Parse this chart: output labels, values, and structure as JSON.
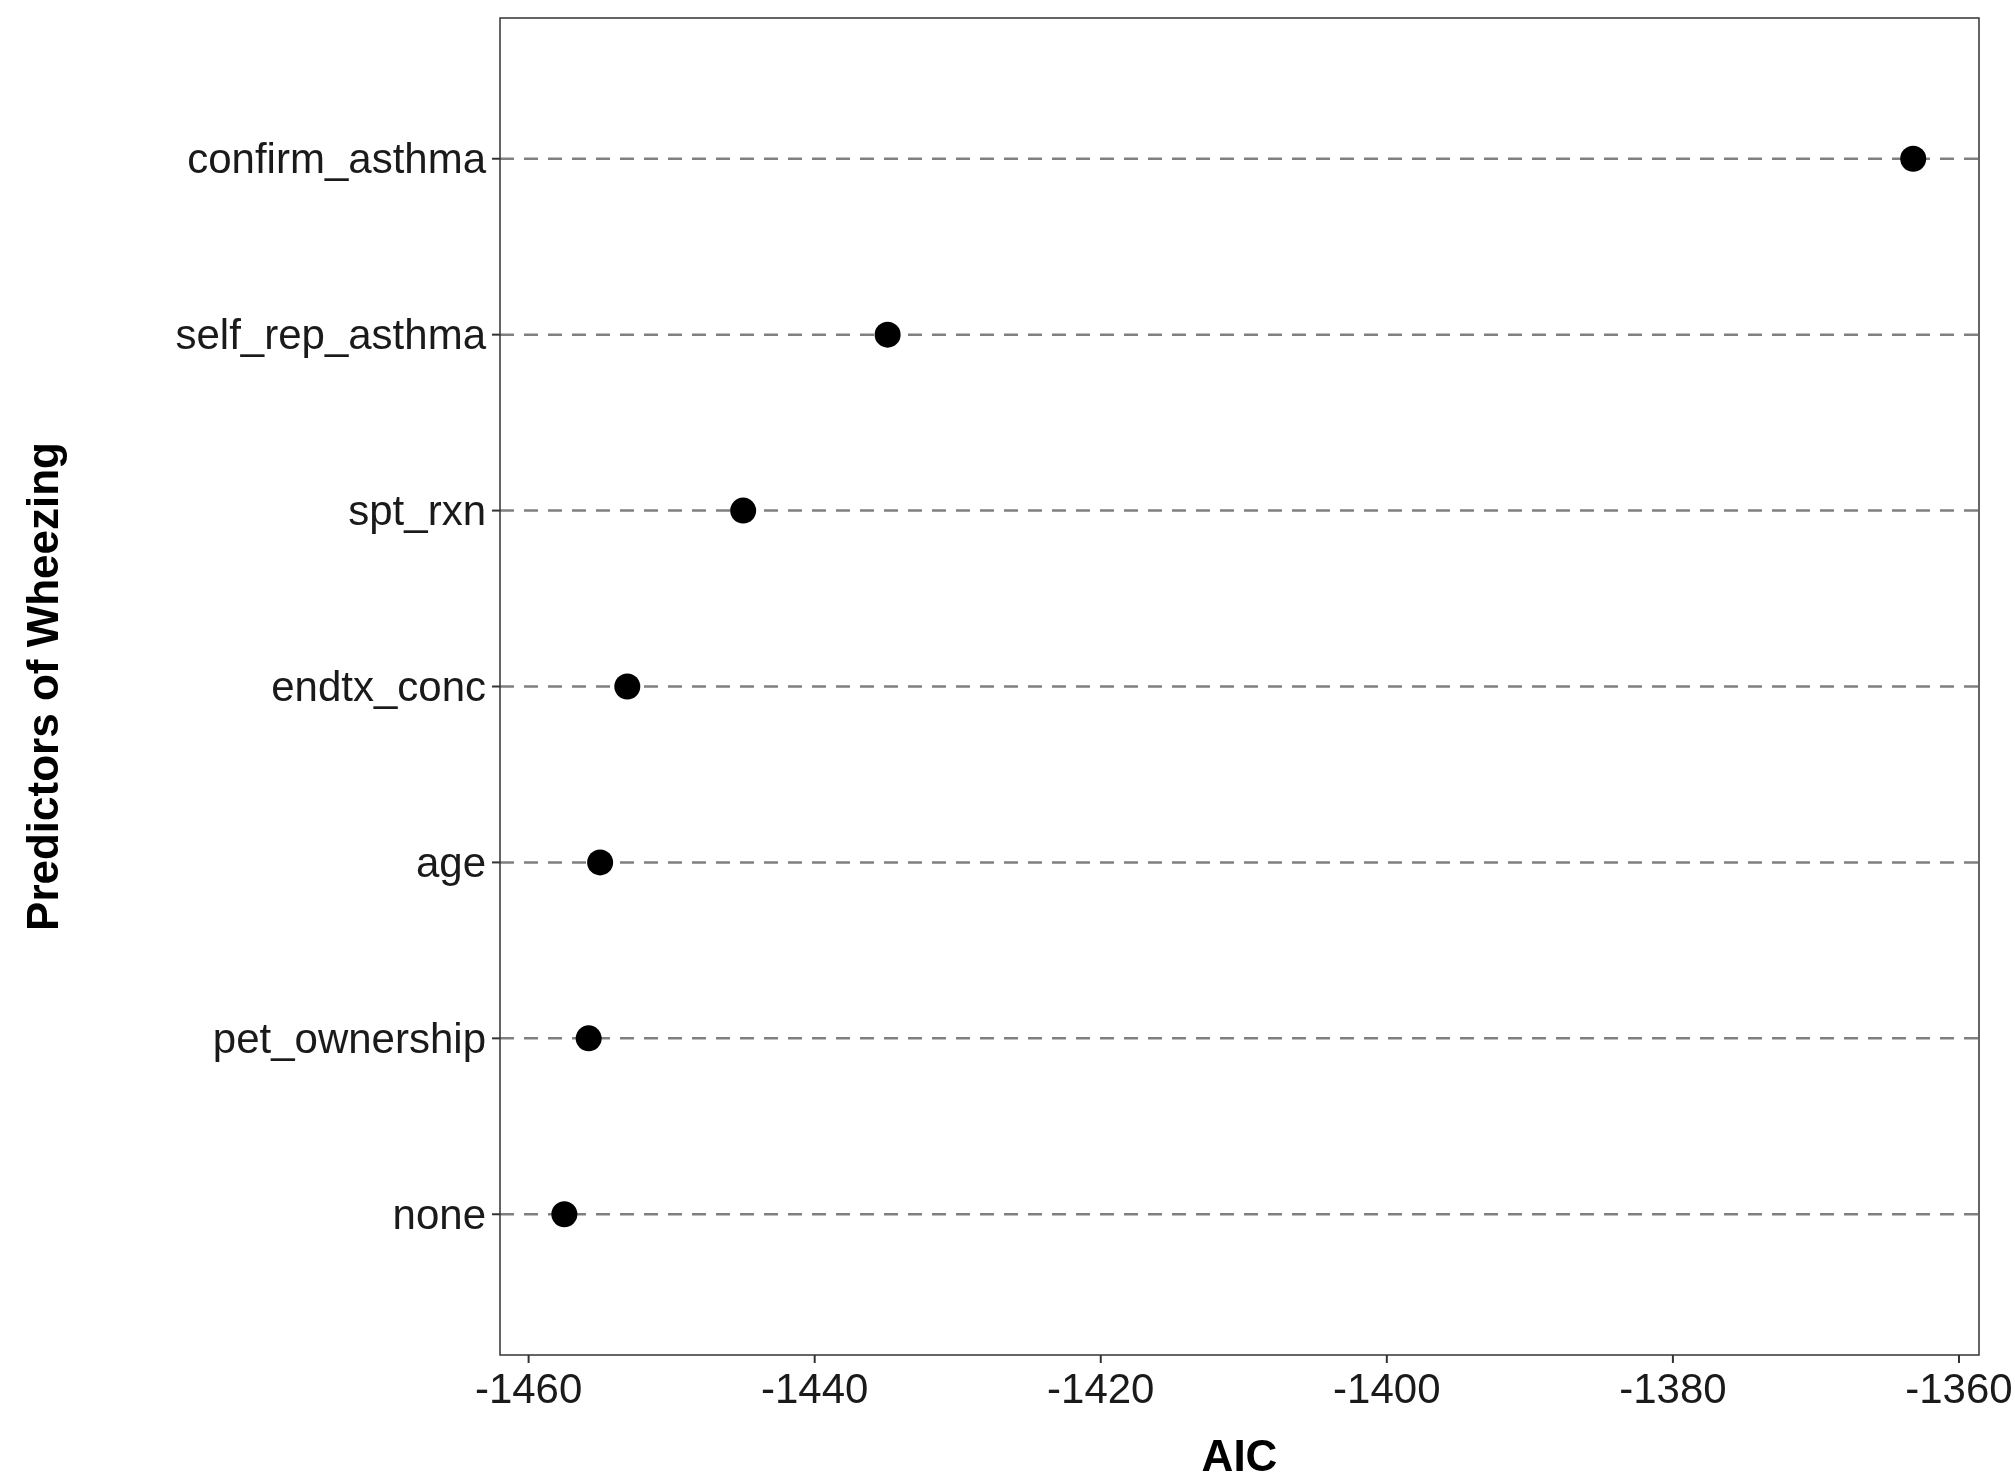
{
  "chart_data": {
    "type": "scatter",
    "orientation": "horizontal",
    "xlabel": "AIC",
    "ylabel": "Predictors of Wheezing",
    "categories": [
      "confirm_asthma",
      "self_rep_asthma",
      "spt_rxn",
      "endtx_conc",
      "age",
      "pet_ownership",
      "none"
    ],
    "values": [
      -1363.2,
      -1434.9,
      -1445,
      -1453.1,
      -1455,
      -1455.8,
      -1457.5
    ],
    "color": "#000000",
    "marker": "circle",
    "grid": "y",
    "line_style": "dashed",
    "xlim": [
      -1462,
      -1358.6
    ],
    "xticks": [
      -1460,
      -1440,
      -1420,
      -1400,
      -1380,
      -1360
    ]
  }
}
